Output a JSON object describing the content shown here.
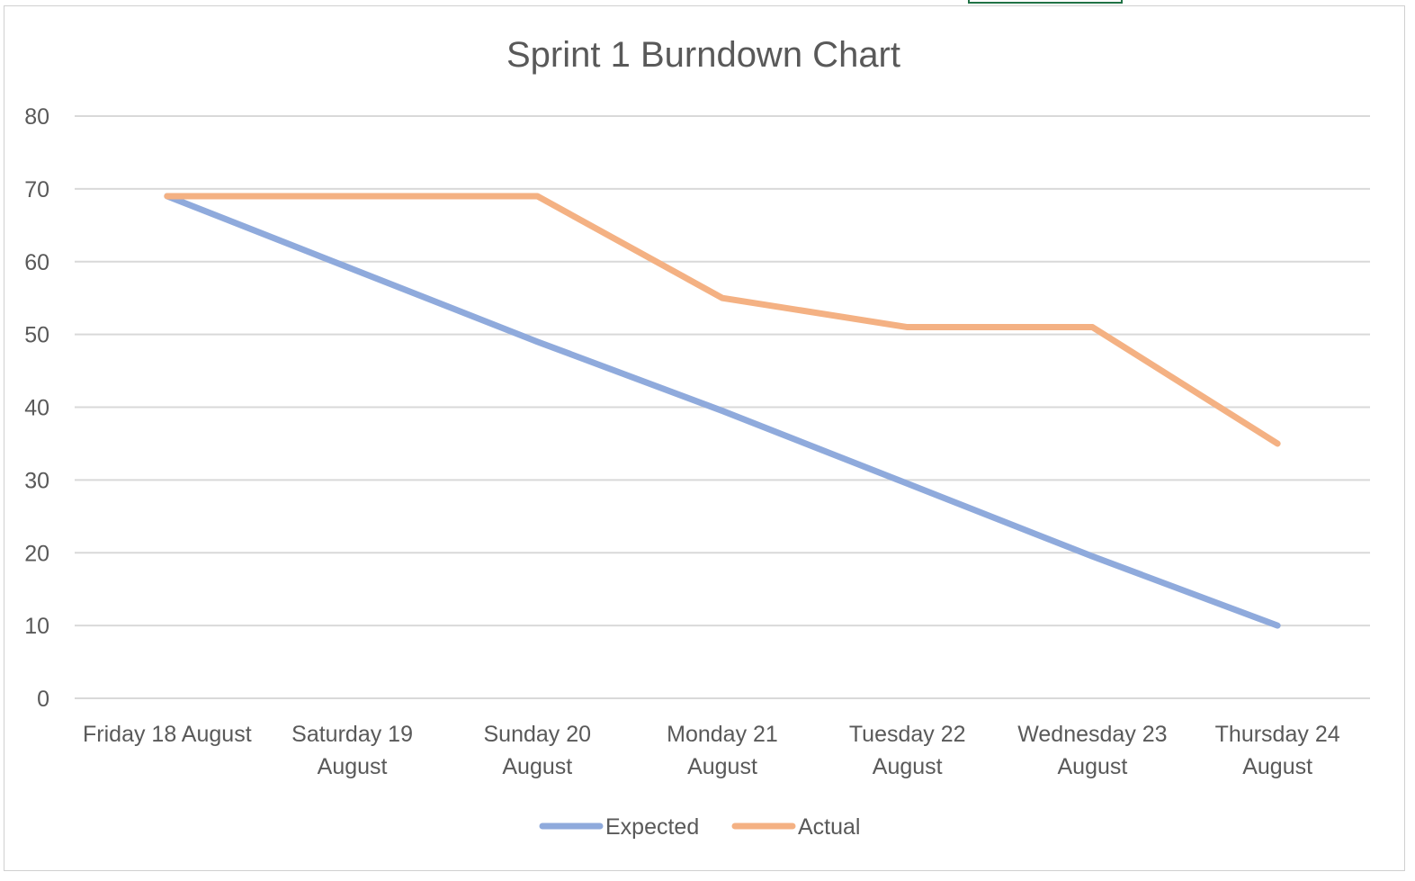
{
  "chart_data": {
    "type": "line",
    "title": "Sprint 1 Burndown Chart",
    "xlabel": "",
    "ylabel": "",
    "categories": [
      [
        "Friday 18 August"
      ],
      [
        "Saturday 19",
        "August"
      ],
      [
        "Sunday 20",
        "August"
      ],
      [
        "Monday 21",
        "August"
      ],
      [
        "Tuesday 22",
        "August"
      ],
      [
        "Wednesday 23",
        "August"
      ],
      [
        "Thursday 24",
        "August"
      ]
    ],
    "ylim": [
      0,
      80
    ],
    "yticks": [
      0,
      10,
      20,
      30,
      40,
      50,
      60,
      70,
      80
    ],
    "grid": true,
    "legend": "bottom",
    "series": [
      {
        "name": "Expected",
        "color": "#8faadc",
        "values": [
          69,
          59,
          49,
          39.5,
          29.5,
          19.5,
          10
        ]
      },
      {
        "name": "Actual",
        "color": "#f4b183",
        "values": [
          69,
          69,
          69,
          55,
          51,
          51,
          35
        ]
      }
    ]
  },
  "colors": {
    "gridline": "#d9d9d9",
    "text": "#595959",
    "selection": "#217346"
  }
}
